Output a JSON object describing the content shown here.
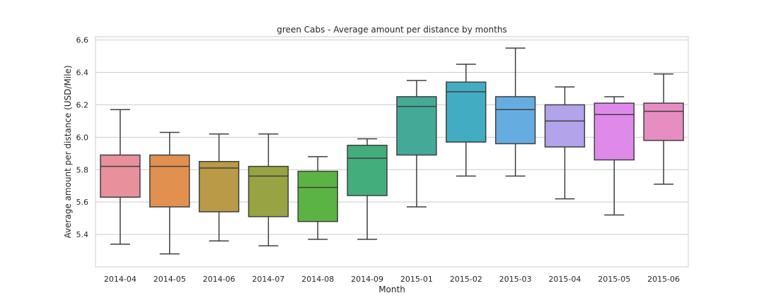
{
  "chart_data": {
    "type": "box",
    "title": "green Cabs - Average amount per distance by months",
    "xlabel": "Month",
    "ylabel": "Average amount per distance (USD/Mile)",
    "ylim": [
      5.2,
      6.62
    ],
    "yticks": [
      5.4,
      5.6,
      5.8,
      6.0,
      6.2,
      6.4,
      6.6
    ],
    "ytick_labels": [
      "5.4",
      "5.6",
      "5.8",
      "6.0",
      "6.2",
      "6.4",
      "6.6"
    ],
    "grid": "horizontal",
    "categories": [
      "2014-04",
      "2014-05",
      "2014-06",
      "2014-07",
      "2014-08",
      "2014-09",
      "2015-01",
      "2015-02",
      "2015-03",
      "2015-04",
      "2015-05",
      "2015-06"
    ],
    "boxes": [
      {
        "whisker_low": 5.34,
        "q1": 5.63,
        "median": 5.82,
        "q3": 5.89,
        "whisker_high": 6.17,
        "color": "#e8919c"
      },
      {
        "whisker_low": 5.28,
        "q1": 5.57,
        "median": 5.82,
        "q3": 5.89,
        "whisker_high": 6.03,
        "color": "#e2904f"
      },
      {
        "whisker_low": 5.36,
        "q1": 5.54,
        "median": 5.81,
        "q3": 5.85,
        "whisker_high": 6.02,
        "color": "#b89a47"
      },
      {
        "whisker_low": 5.33,
        "q1": 5.51,
        "median": 5.76,
        "q3": 5.82,
        "whisker_high": 6.02,
        "color": "#98a343"
      },
      {
        "whisker_low": 5.37,
        "q1": 5.48,
        "median": 5.69,
        "q3": 5.79,
        "whisker_high": 5.88,
        "color": "#5bb343"
      },
      {
        "whisker_low": 5.37,
        "q1": 5.64,
        "median": 5.87,
        "q3": 5.95,
        "whisker_high": 5.99,
        "color": "#43ad7c"
      },
      {
        "whisker_low": 5.57,
        "q1": 5.89,
        "median": 6.19,
        "q3": 6.25,
        "whisker_high": 6.35,
        "color": "#44aa98"
      },
      {
        "whisker_low": 5.76,
        "q1": 5.97,
        "median": 6.28,
        "q3": 6.34,
        "whisker_high": 6.45,
        "color": "#42acc3"
      },
      {
        "whisker_low": 5.76,
        "q1": 5.96,
        "median": 6.17,
        "q3": 6.25,
        "whisker_high": 6.55,
        "color": "#65ace1"
      },
      {
        "whisker_low": 5.62,
        "q1": 5.94,
        "median": 6.1,
        "q3": 6.2,
        "whisker_high": 6.31,
        "color": "#b2a3ea"
      },
      {
        "whisker_low": 5.52,
        "q1": 5.86,
        "median": 6.14,
        "q3": 6.21,
        "whisker_high": 6.25,
        "color": "#df8aeb"
      },
      {
        "whisker_low": 5.71,
        "q1": 5.98,
        "median": 6.16,
        "q3": 6.21,
        "whisker_high": 6.39,
        "color": "#e68dc2"
      }
    ]
  }
}
